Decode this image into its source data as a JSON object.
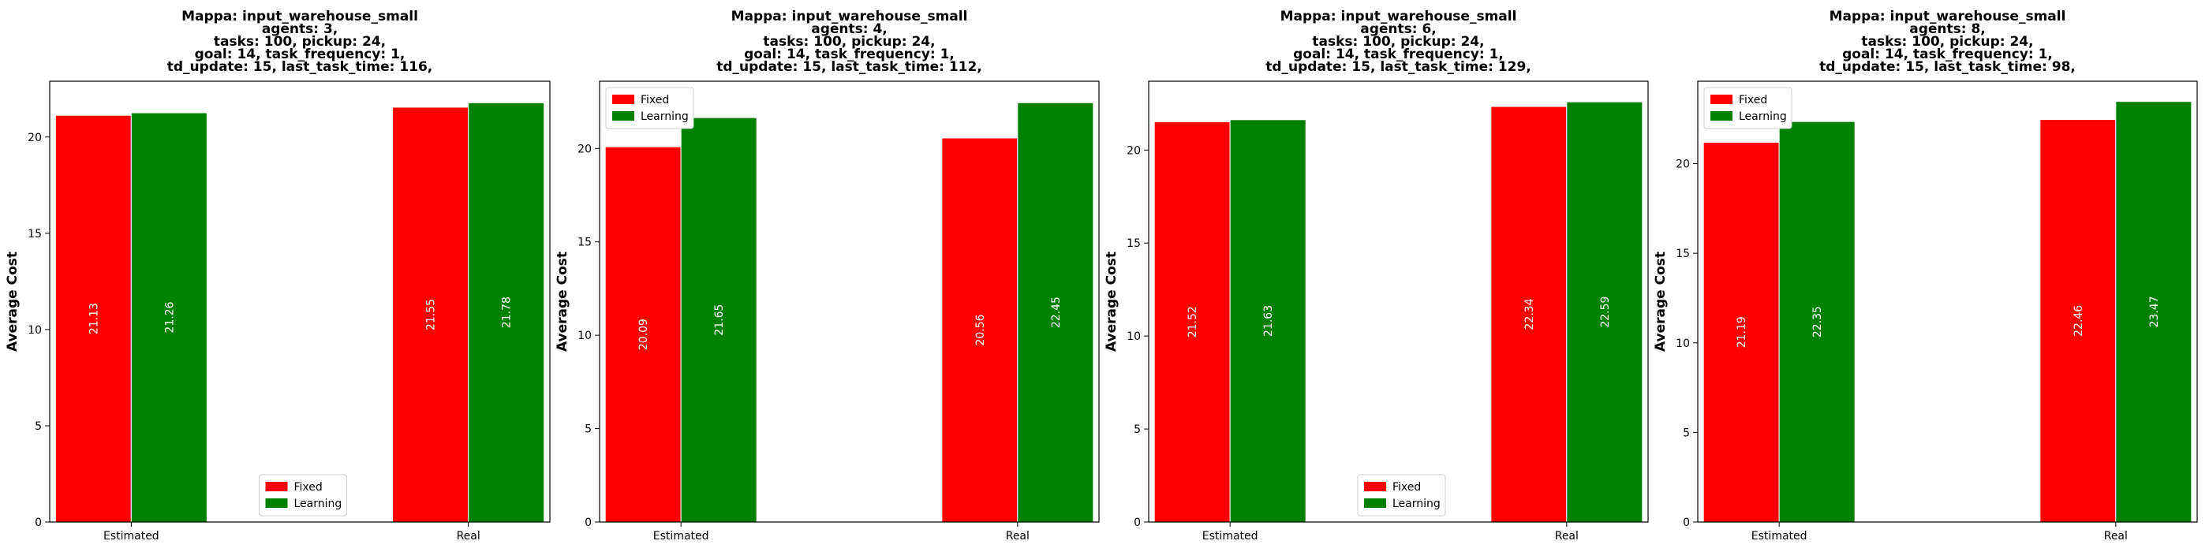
{
  "chart_data": [
    {
      "type": "bar",
      "title_lines": [
        "Mappa: input_warehouse_small",
        "agents: 3,",
        "tasks: 100, pickup: 24,",
        "goal: 14, task_frequency: 1,",
        "td_update: 15, last_task_time: 116,"
      ],
      "ylabel": "Average Cost",
      "categories": [
        "Estimated",
        "Real"
      ],
      "series": [
        {
          "name": "Fixed",
          "color": "#ff0000",
          "values": [
            21.13,
            21.55
          ]
        },
        {
          "name": "Learning",
          "color": "#008000",
          "values": [
            21.26,
            21.78
          ]
        }
      ],
      "data_labels": [
        [
          "21.13",
          "21.55"
        ],
        [
          "21.26",
          "21.78"
        ]
      ],
      "ylim": [
        0,
        22.9
      ],
      "yticks": [
        0,
        5,
        10,
        15,
        20
      ],
      "legend": "lower-center"
    },
    {
      "type": "bar",
      "title_lines": [
        "Mappa: input_warehouse_small",
        "agents: 4,",
        "tasks: 100, pickup: 24,",
        "goal: 14, task_frequency: 1,",
        "td_update: 15, last_task_time: 112,"
      ],
      "ylabel": "Average Cost",
      "categories": [
        "Estimated",
        "Real"
      ],
      "series": [
        {
          "name": "Fixed",
          "color": "#ff0000",
          "values": [
            20.09,
            20.56
          ]
        },
        {
          "name": "Learning",
          "color": "#008000",
          "values": [
            21.65,
            22.45
          ]
        }
      ],
      "data_labels": [
        [
          "20.09",
          "20.56"
        ],
        [
          "21.65",
          "22.45"
        ]
      ],
      "ylim": [
        0,
        23.6
      ],
      "yticks": [
        0,
        5,
        10,
        15,
        20
      ],
      "legend": "upper-left"
    },
    {
      "type": "bar",
      "title_lines": [
        "Mappa: input_warehouse_small",
        "agents: 6,",
        "tasks: 100, pickup: 24,",
        "goal: 14, task_frequency: 1,",
        "td_update: 15, last_task_time: 129,"
      ],
      "ylabel": "Average Cost",
      "categories": [
        "Estimated",
        "Real"
      ],
      "series": [
        {
          "name": "Fixed",
          "color": "#ff0000",
          "values": [
            21.52,
            22.34
          ]
        },
        {
          "name": "Learning",
          "color": "#008000",
          "values": [
            21.63,
            22.59
          ]
        }
      ],
      "data_labels": [
        [
          "21.52",
          "22.34"
        ],
        [
          "21.63",
          "22.59"
        ]
      ],
      "ylim": [
        0,
        23.7
      ],
      "yticks": [
        0,
        5,
        10,
        15,
        20
      ],
      "legend": "lower-center"
    },
    {
      "type": "bar",
      "title_lines": [
        "Mappa: input_warehouse_small",
        "agents: 8,",
        "tasks: 100, pickup: 24,",
        "goal: 14, task_frequency: 1,",
        "td_update: 15, last_task_time: 98,"
      ],
      "ylabel": "Average Cost",
      "categories": [
        "Estimated",
        "Real"
      ],
      "series": [
        {
          "name": "Fixed",
          "color": "#ff0000",
          "values": [
            21.19,
            22.46
          ]
        },
        {
          "name": "Learning",
          "color": "#008000",
          "values": [
            22.35,
            23.47
          ]
        }
      ],
      "data_labels": [
        [
          "21.19",
          "22.46"
        ],
        [
          "22.35",
          "23.47"
        ]
      ],
      "ylim": [
        0,
        24.6
      ],
      "yticks": [
        0,
        5,
        10,
        15,
        20
      ],
      "legend": "upper-left"
    }
  ]
}
